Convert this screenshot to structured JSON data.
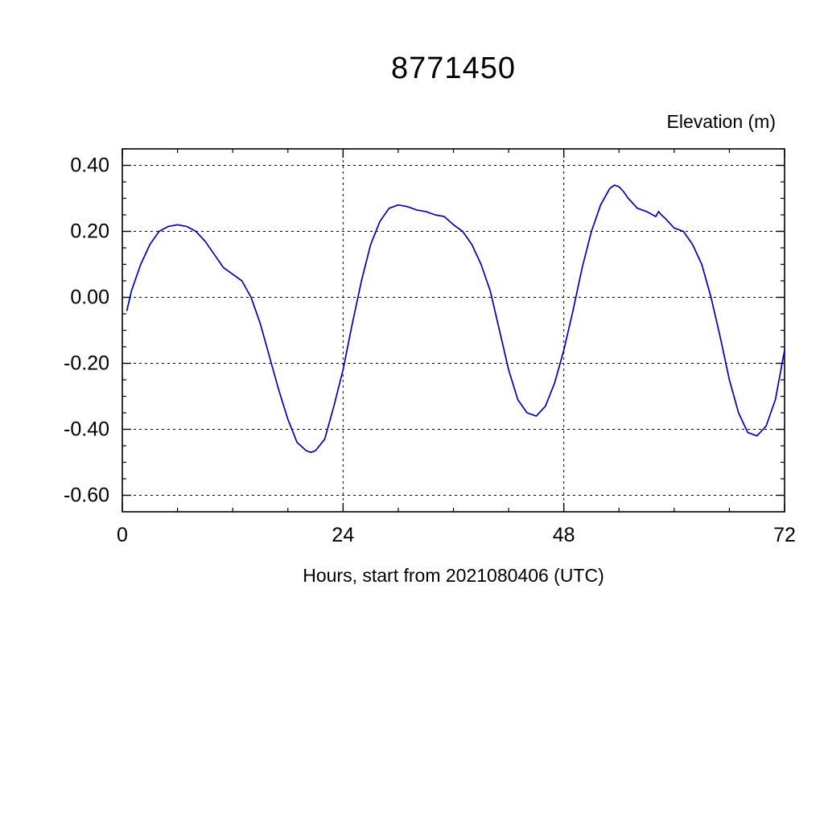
{
  "chart_data": {
    "type": "line",
    "title": "8771450",
    "ylabel": "Elevation (m)",
    "xlabel": "Hours, start from 2021080406 (UTC)",
    "xlim": [
      0,
      72
    ],
    "ylim": [
      -0.65,
      0.45
    ],
    "x_ticks": [
      0,
      24,
      48,
      72
    ],
    "x_tick_labels": [
      "0",
      "24",
      "48",
      "72"
    ],
    "x_gridlines": [
      24,
      48
    ],
    "y_ticks": [
      0.4,
      0.2,
      0.0,
      -0.2,
      -0.4,
      -0.6
    ],
    "y_tick_labels": [
      "0.40",
      "0.20",
      "0.00",
      "-0.20",
      "-0.40",
      "-0.60"
    ],
    "x_minor_step": 6,
    "y_minor_step": 0.05,
    "grid": "dashed",
    "legend": "none",
    "line_color": "#0000bb",
    "frame_color": "#000000",
    "series": [
      {
        "name": "elevation",
        "x": [
          0.5,
          1,
          2,
          3,
          4,
          5,
          6,
          7,
          8,
          9,
          10,
          11,
          12,
          13,
          14,
          15,
          16,
          17,
          18,
          19,
          20,
          20.5,
          21,
          22,
          23,
          24,
          25,
          26,
          27,
          28,
          29,
          30,
          31,
          32,
          33,
          34,
          35,
          36,
          37,
          38,
          39,
          40,
          41,
          42,
          43,
          44,
          45,
          46,
          47,
          48,
          49,
          50,
          51,
          52,
          53,
          53.5,
          54,
          54.5,
          55,
          56,
          57,
          58,
          58.3,
          58.6,
          59,
          60,
          61,
          62,
          63,
          64,
          65,
          66,
          67,
          68,
          69,
          70,
          71,
          72
        ],
        "y": [
          -0.04,
          0.02,
          0.1,
          0.16,
          0.2,
          0.215,
          0.22,
          0.215,
          0.2,
          0.17,
          0.13,
          0.09,
          0.07,
          0.05,
          0.0,
          -0.08,
          -0.18,
          -0.28,
          -0.37,
          -0.44,
          -0.465,
          -0.47,
          -0.465,
          -0.43,
          -0.33,
          -0.22,
          -0.08,
          0.05,
          0.16,
          0.23,
          0.27,
          0.28,
          0.275,
          0.265,
          0.26,
          0.25,
          0.245,
          0.22,
          0.2,
          0.16,
          0.1,
          0.02,
          -0.1,
          -0.22,
          -0.31,
          -0.35,
          -0.36,
          -0.33,
          -0.26,
          -0.16,
          -0.04,
          0.09,
          0.2,
          0.28,
          0.33,
          0.34,
          0.335,
          0.32,
          0.3,
          0.27,
          0.26,
          0.245,
          0.26,
          0.25,
          0.24,
          0.21,
          0.2,
          0.16,
          0.1,
          0.0,
          -0.12,
          -0.25,
          -0.35,
          -0.41,
          -0.42,
          -0.39,
          -0.31,
          -0.16
        ]
      }
    ]
  }
}
